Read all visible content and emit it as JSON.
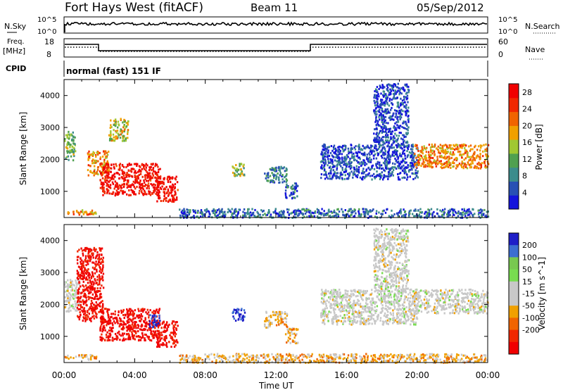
{
  "header": {
    "radar": "Fort Hays West (fitACF)",
    "beam": "Beam 11",
    "date": "05/Sep/2012"
  },
  "top_panels": {
    "nsky_label": "N.Sky",
    "nsky_ticks": [
      "10^5",
      "10^0"
    ],
    "nsearch_label": "N.Search",
    "nsearch_ticks": [
      "10^5",
      "10^0"
    ],
    "freq_label": "Freq.",
    "freq_unit": "[MHz]",
    "freq_ticks": [
      "18",
      "8"
    ],
    "nave_label": "Nave",
    "nave_ticks": [
      "60",
      "0"
    ],
    "cpid_label": "CPID",
    "cpid_value": "normal (fast) 151 IF"
  },
  "colors": {
    "power": [
      "#1414dc",
      "#2850b4",
      "#3c8c8c",
      "#50a050",
      "#a0c832",
      "#f0a000",
      "#f06400",
      "#f02800",
      "#f00000"
    ],
    "velocity": [
      "#1e1ec8",
      "#3c6ed2",
      "#78c850",
      "#78dc50",
      "#c8c8c8",
      "#c8c8c8",
      "#f0a000",
      "#f06400",
      "#f02800",
      "#f00000"
    ]
  },
  "chart_data": [
    {
      "type": "heatmap",
      "name": "power",
      "xlabel": "Time UT",
      "ylabel": "Slant Range [km]",
      "x_ticks": [
        "00:00",
        "04:00",
        "08:00",
        "12:00",
        "16:00",
        "20:00",
        "00:00"
      ],
      "xlim_hours": [
        0,
        24
      ],
      "y_ticks": [
        1000,
        2000,
        3000,
        4000
      ],
      "ylim": [
        180,
        4500
      ],
      "colorbar_label": "Power [dB]",
      "colorbar_ticks": [
        4,
        8,
        12,
        16,
        20,
        24,
        28
      ],
      "colorbar_range": [
        0,
        30
      ],
      "features": [
        {
          "t0": 0.0,
          "t1": 0.6,
          "r0": 2000,
          "r1": 2900,
          "v": 12
        },
        {
          "t0": 1.3,
          "t1": 2.5,
          "r0": 1500,
          "r1": 2300,
          "v": 20
        },
        {
          "t0": 2.0,
          "t1": 5.4,
          "r0": 900,
          "r1": 1900,
          "v": 28
        },
        {
          "t0": 5.2,
          "t1": 6.4,
          "r0": 700,
          "r1": 1500,
          "v": 28
        },
        {
          "t0": 2.5,
          "t1": 3.6,
          "r0": 2600,
          "r1": 3300,
          "v": 16
        },
        {
          "t0": 0.0,
          "t1": 1.8,
          "r0": 300,
          "r1": 450,
          "v": 20
        },
        {
          "t0": 9.5,
          "t1": 10.2,
          "r0": 1500,
          "r1": 1900,
          "v": 14
        },
        {
          "t0": 11.3,
          "t1": 12.6,
          "r0": 1300,
          "r1": 1800,
          "v": 8
        },
        {
          "t0": 12.5,
          "t1": 13.2,
          "r0": 800,
          "r1": 1300,
          "v": 6
        },
        {
          "t0": 14.5,
          "t1": 20.0,
          "r0": 1400,
          "r1": 2500,
          "v": 4
        },
        {
          "t0": 17.5,
          "t1": 19.5,
          "r0": 2500,
          "r1": 4400,
          "v": 4
        },
        {
          "t0": 19.8,
          "t1": 24.0,
          "r0": 1750,
          "r1": 2500,
          "v": 20
        },
        {
          "t0": 6.5,
          "t1": 24.0,
          "r0": 200,
          "r1": 480,
          "v": 6
        }
      ]
    },
    {
      "type": "heatmap",
      "name": "velocity",
      "xlabel": "Time UT",
      "ylabel": "Slant Range [km]",
      "x_ticks": [
        "00:00",
        "04:00",
        "08:00",
        "12:00",
        "16:00",
        "20:00",
        "00:00"
      ],
      "xlim_hours": [
        0,
        24
      ],
      "y_ticks": [
        1000,
        2000,
        3000,
        4000
      ],
      "ylim": [
        180,
        4500
      ],
      "colorbar_label": "Velocity [m s^-1]",
      "colorbar_ticks": [
        200,
        100,
        50,
        15,
        -15,
        -50,
        -100,
        -200
      ],
      "colorbar_range": [
        -250,
        250
      ],
      "features": [
        {
          "t0": 0.0,
          "t1": 0.9,
          "r0": 1800,
          "r1": 2800,
          "v": 0
        },
        {
          "t0": 0.7,
          "t1": 2.2,
          "r0": 1500,
          "r1": 3800,
          "v": -220
        },
        {
          "t0": 2.0,
          "t1": 5.4,
          "r0": 900,
          "r1": 1900,
          "v": -230
        },
        {
          "t0": 5.2,
          "t1": 6.4,
          "r0": 700,
          "r1": 1500,
          "v": -230
        },
        {
          "t0": 4.8,
          "t1": 5.4,
          "r0": 1300,
          "r1": 1700,
          "v": 220
        },
        {
          "t0": 0.0,
          "t1": 1.8,
          "r0": 300,
          "r1": 450,
          "v": -70
        },
        {
          "t0": 9.5,
          "t1": 10.2,
          "r0": 1500,
          "r1": 1900,
          "v": 220
        },
        {
          "t0": 11.3,
          "t1": 12.6,
          "r0": 1300,
          "r1": 1800,
          "v": -60
        },
        {
          "t0": 12.5,
          "t1": 13.2,
          "r0": 800,
          "r1": 1300,
          "v": -60
        },
        {
          "t0": 14.5,
          "t1": 20.0,
          "r0": 1400,
          "r1": 2500,
          "v": 0
        },
        {
          "t0": 17.5,
          "t1": 19.5,
          "r0": 2500,
          "r1": 4400,
          "v": 0
        },
        {
          "t0": 19.8,
          "t1": 24.0,
          "r0": 1750,
          "r1": 2500,
          "v": 0
        },
        {
          "t0": 6.5,
          "t1": 24.0,
          "r0": 200,
          "r1": 480,
          "v": -60
        }
      ]
    }
  ]
}
